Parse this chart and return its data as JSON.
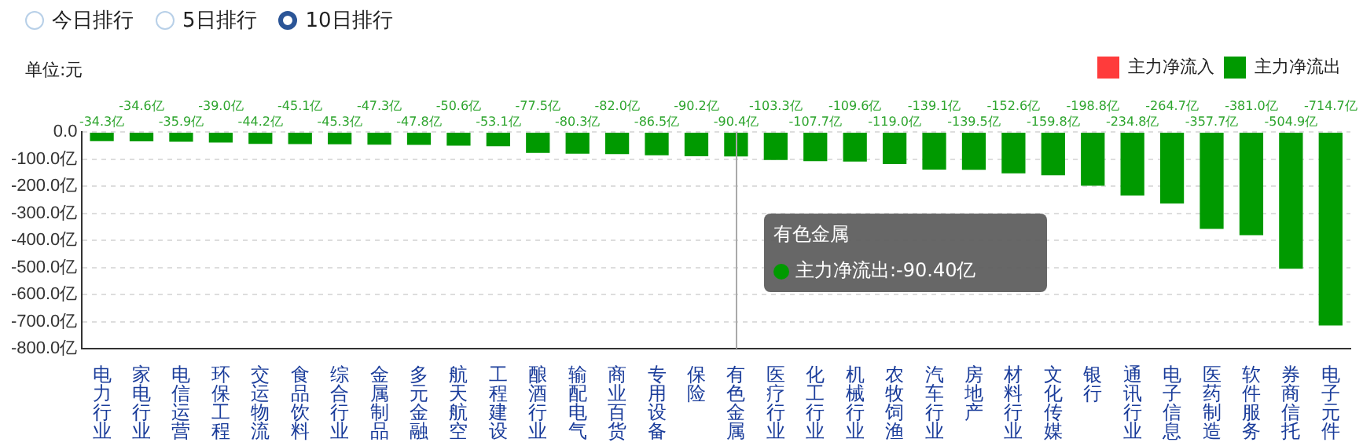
{
  "chart_data": {
    "type": "bar",
    "stacked": true,
    "categories": [
      "电力行业",
      "家电行业",
      "电信运营",
      "环保工程",
      "交运物流",
      "食品饮料",
      "综合行业",
      "金属制品",
      "多元金融",
      "航天航空",
      "工程建设",
      "酿酒行业",
      "输配电气",
      "商业百货",
      "专用设备",
      "保险",
      "有色金属",
      "医疗行业",
      "化工行业",
      "机械行业",
      "农牧饲渔",
      "汽车行业",
      "房地产",
      "材料行业",
      "文化传媒",
      "银行",
      "通讯行业",
      "电子信息",
      "医药制造",
      "软件服务",
      "券商信托",
      "电子元件"
    ],
    "series": [
      {
        "name": "主力净流入",
        "color": "#ff3b3b",
        "values": [
          null,
          null,
          null,
          null,
          null,
          null,
          null,
          null,
          null,
          null,
          null,
          null,
          null,
          null,
          null,
          null,
          null,
          null,
          null,
          null,
          null,
          null,
          null,
          null,
          null,
          null,
          null,
          null,
          null,
          null,
          null,
          null
        ]
      },
      {
        "name": "主力净流出",
        "color": "#009a00",
        "values": [
          -34.3,
          -34.6,
          -35.9,
          -39.0,
          -44.2,
          -45.1,
          -45.3,
          -47.3,
          -47.8,
          -50.6,
          -53.1,
          -77.5,
          -80.3,
          -82.0,
          -86.5,
          -90.2,
          -90.4,
          -103.3,
          -107.7,
          -109.6,
          -119.0,
          -139.1,
          -139.5,
          -152.6,
          -159.8,
          -198.8,
          -234.8,
          -264.7,
          -357.7,
          -381.0,
          -504.9,
          -714.7
        ],
        "value_labels": [
          "-34.3亿",
          "-34.6亿",
          "-35.9亿",
          "-39.0亿",
          "-44.2亿",
          "-45.1亿",
          "-45.3亿",
          "-47.3亿",
          "-47.8亿",
          "-50.6亿",
          "-53.1亿",
          "-77.5亿",
          "-80.3亿",
          "-82.0亿",
          "-86.5亿",
          "-90.2亿",
          "-90.4亿",
          "-103.3亿",
          "-107.7亿",
          "-109.6亿",
          "-119.0亿",
          "-139.1亿",
          "-139.5亿",
          "-152.6亿",
          "-159.8亿",
          "-198.8亿",
          "-234.8亿",
          "-264.7亿",
          "-357.7亿",
          "-381.0亿",
          "-504.9亿",
          "-714.7亿"
        ]
      }
    ],
    "ylim": [
      -800,
      0
    ],
    "yticks": [
      {
        "value": 0,
        "label": "0.0"
      },
      {
        "value": -100,
        "label": "-100.0亿"
      },
      {
        "value": -200,
        "label": "-200.0亿"
      },
      {
        "value": -300,
        "label": "-300.0亿"
      },
      {
        "value": -400,
        "label": "-400.0亿"
      },
      {
        "value": -500,
        "label": "-500.0亿"
      },
      {
        "value": -600,
        "label": "-600.0亿"
      },
      {
        "value": -700,
        "label": "-700.0亿"
      },
      {
        "value": -800,
        "label": "-800.0亿"
      }
    ],
    "grid": "y",
    "legend": "top right",
    "ref_lines": [
      {
        "axis": "x",
        "value": "有色金属",
        "color": "#aaaaaa"
      }
    ],
    "annotations": [
      "今日排行",
      "5日排行",
      "10日排行",
      "单位:元",
      "有色金属",
      "主力净流出:-90.40亿"
    ]
  }
}
